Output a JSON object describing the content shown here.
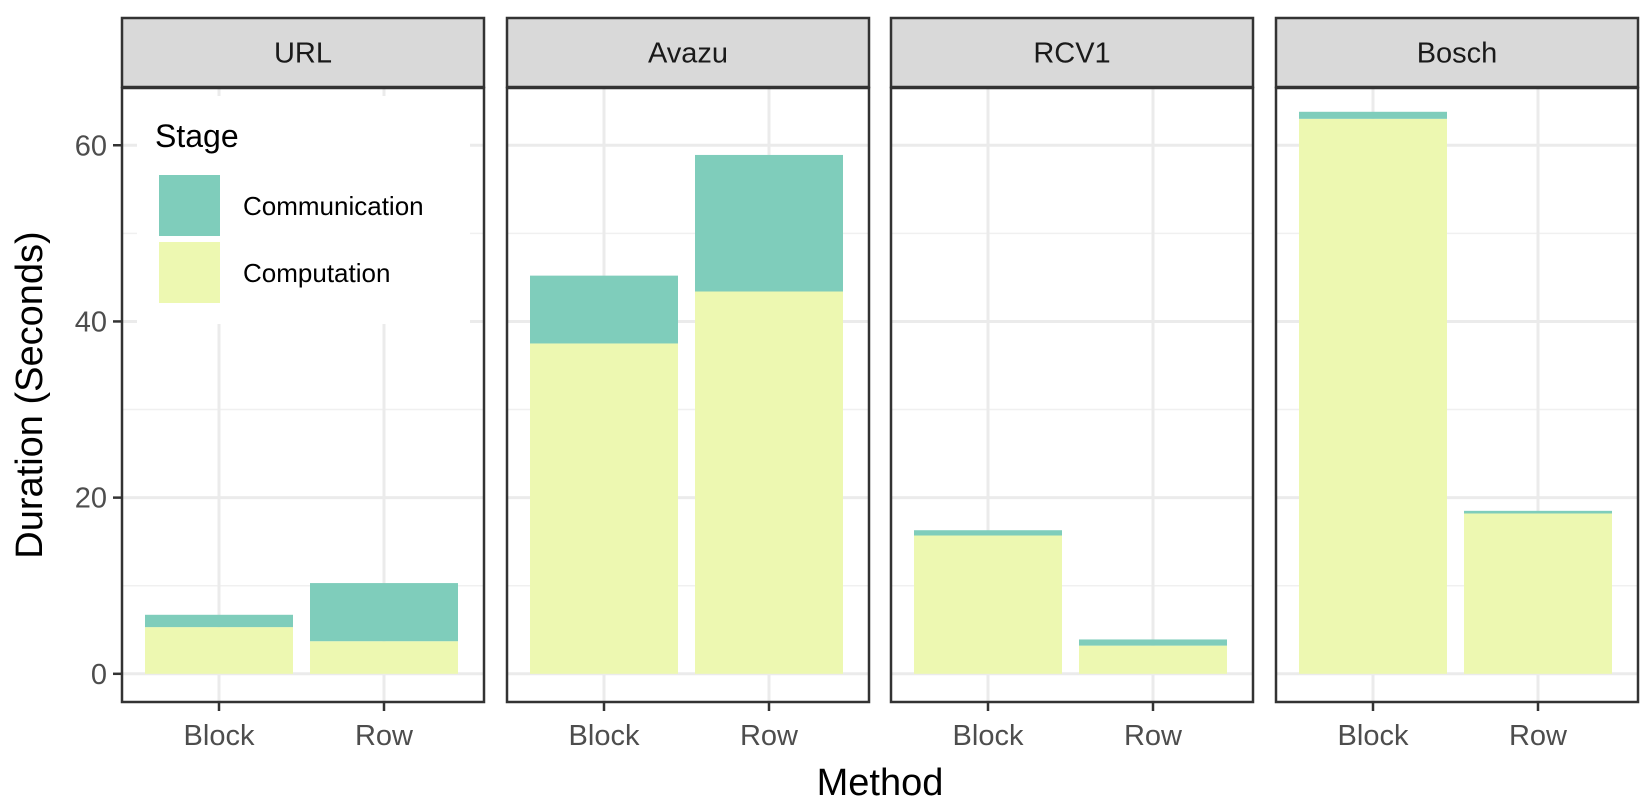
{
  "chart_data": {
    "type": "bar",
    "stacked": true,
    "facets": [
      "URL",
      "Avazu",
      "RCV1",
      "Bosch"
    ],
    "categories": [
      "Block",
      "Row"
    ],
    "series": [
      {
        "name": "Computation",
        "color": "#edf8b1",
        "values": [
          [
            5.3,
            3.7
          ],
          [
            37.5,
            43.4
          ],
          [
            15.7,
            3.2
          ],
          [
            63.0,
            18.2
          ]
        ]
      },
      {
        "name": "Communication",
        "color": "#7fcdbb",
        "values": [
          [
            1.4,
            6.6
          ],
          [
            7.7,
            15.5
          ],
          [
            0.6,
            0.7
          ],
          [
            0.8,
            0.3
          ]
        ]
      }
    ],
    "xlabel": "Method",
    "ylabel": "Duration (Seconds)",
    "ylim": [
      -3.2,
      66.5
    ],
    "yticks": [
      0,
      20,
      40,
      60
    ],
    "legend": {
      "title": "Stage",
      "position": "top-left inside first panel",
      "entries": [
        "Communication",
        "Computation"
      ]
    },
    "grid": true
  }
}
